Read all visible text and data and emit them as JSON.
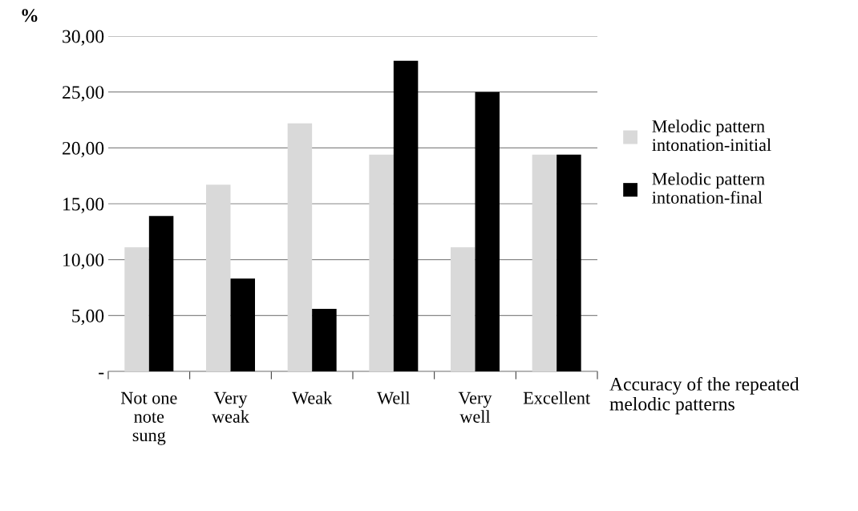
{
  "chart_data": {
    "type": "bar",
    "ylabel": "%",
    "xlabel": "Accuracy of the repeated\nmelodic patterns",
    "categories": [
      "Not one\nnote\nsung",
      "Very\nweak",
      "Weak",
      "Well",
      "Very\nwell",
      "Excellent"
    ],
    "series": [
      {
        "name": "Melodic pattern\nintonation-initial",
        "color": "#d9d9d9",
        "values": [
          11.1,
          16.7,
          22.2,
          19.4,
          11.1,
          19.4
        ]
      },
      {
        "name": "Melodic pattern\nintonation-final",
        "color": "#000000",
        "values": [
          13.9,
          8.3,
          5.6,
          27.8,
          25.0,
          19.4
        ]
      }
    ],
    "ylim": [
      0,
      30
    ],
    "yticks": [
      {
        "value": 0,
        "label": "-"
      },
      {
        "value": 5,
        "label": "5,00"
      },
      {
        "value": 10,
        "label": "10,00"
      },
      {
        "value": 15,
        "label": "15,00"
      },
      {
        "value": 20,
        "label": "20,00"
      },
      {
        "value": 25,
        "label": "25,00"
      },
      {
        "value": 30,
        "label": "30,00"
      }
    ],
    "grid": "y",
    "legend": "right"
  }
}
